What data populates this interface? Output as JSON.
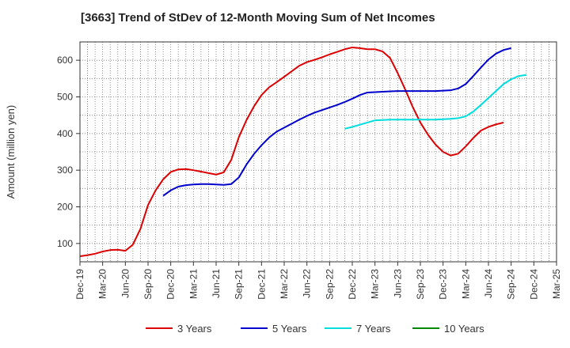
{
  "chart_data": {
    "type": "line",
    "title": "[3663]  Trend of StDev of 12-Month Moving Sum of Net Incomes",
    "ylabel": "Amount (million yen)",
    "xlabel": "",
    "ylim": [
      50,
      650
    ],
    "yticks": [
      100,
      200,
      300,
      400,
      500,
      600
    ],
    "x_start": "Dec-19",
    "x_tick_labels": [
      "Dec-19",
      "Mar-20",
      "Jun-20",
      "Sep-20",
      "Dec-20",
      "Mar-21",
      "Jun-21",
      "Sep-21",
      "Dec-21",
      "Mar-22",
      "Jun-22",
      "Sep-22",
      "Dec-22",
      "Mar-23",
      "Jun-23",
      "Sep-23",
      "Dec-23",
      "Mar-24",
      "Jun-24",
      "Sep-24",
      "Dec-24",
      "Mar-25"
    ],
    "grid": true,
    "legend_position": "bottom",
    "series": [
      {
        "name": "3 Years",
        "color": "#dd0000",
        "start": "Dec-19",
        "values": [
          65,
          68,
          72,
          78,
          82,
          83,
          80,
          97,
          140,
          205,
          245,
          275,
          295,
          302,
          303,
          300,
          296,
          292,
          288,
          294,
          328,
          390,
          436,
          474,
          505,
          526,
          540,
          555,
          570,
          585,
          595,
          601,
          608,
          616,
          623,
          630,
          635,
          633,
          630,
          630,
          624,
          606,
          565,
          520,
          472,
          430,
          397,
          370,
          350,
          340,
          345,
          365,
          388,
          408,
          418,
          425,
          430
        ]
      },
      {
        "name": "5 Years",
        "color": "#0000cc",
        "start": "Nov-20",
        "values": [
          230,
          245,
          255,
          259,
          261,
          262,
          262,
          261,
          260,
          262,
          280,
          315,
          344,
          368,
          389,
          405,
          416,
          427,
          438,
          448,
          457,
          464,
          471,
          478,
          486,
          495,
          505,
          512,
          513,
          514,
          515,
          516,
          516,
          516,
          516,
          516,
          516,
          517,
          518,
          523,
          535,
          557,
          580,
          602,
          618,
          628,
          633
        ]
      },
      {
        "name": "7 Years",
        "color": "#00dddd",
        "start": "Nov-22",
        "values": [
          413,
          418,
          424,
          430,
          436,
          437,
          438,
          438,
          438,
          438,
          438,
          438,
          438,
          439,
          440,
          442,
          447,
          460,
          478,
          497,
          516,
          535,
          548,
          557,
          560
        ]
      },
      {
        "name": "10 Years",
        "color": "#008800",
        "start": "Dec-24",
        "values": []
      }
    ]
  }
}
